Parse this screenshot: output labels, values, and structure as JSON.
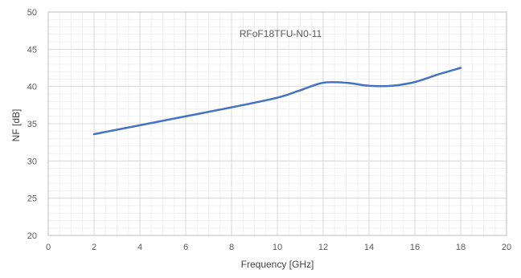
{
  "chart_data": {
    "type": "line",
    "title": "RFoF18TFU-N0-11",
    "xlabel": "Frequency [GHz]",
    "ylabel": "NF [dB]",
    "xlim": [
      0,
      20
    ],
    "ylim": [
      20,
      50
    ],
    "x_ticks": [
      "0",
      "2",
      "4",
      "6",
      "8",
      "10",
      "12",
      "14",
      "16",
      "18",
      "20"
    ],
    "y_ticks": [
      "20",
      "25",
      "30",
      "35",
      "40",
      "45",
      "50"
    ],
    "grid": true,
    "legend": "none",
    "series": [
      {
        "color": "#4472C4",
        "x": [
          2,
          4,
          6,
          8,
          10,
          11,
          12,
          13,
          14,
          15,
          16,
          17,
          18
        ],
        "y": [
          33.6,
          34.8,
          36.0,
          37.2,
          38.5,
          39.5,
          40.5,
          40.5,
          40.1,
          40.1,
          40.6,
          41.6,
          42.5
        ]
      }
    ]
  }
}
